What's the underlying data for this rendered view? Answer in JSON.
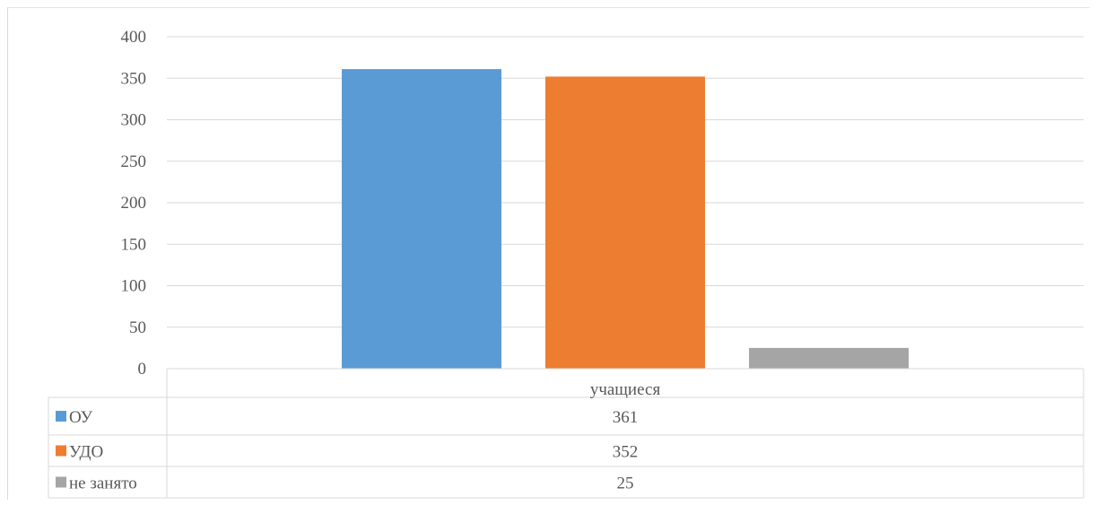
{
  "chart_data": {
    "type": "bar",
    "categories": [
      "учащиеся"
    ],
    "series": [
      {
        "name": "ОУ",
        "values": [
          361
        ],
        "color": "#5b9bd5"
      },
      {
        "name": "УДО",
        "values": [
          352
        ],
        "color": "#ed7d31"
      },
      {
        "name": "не занято",
        "values": [
          25
        ],
        "color": "#a5a5a5"
      }
    ],
    "yticks": [
      "0",
      "50",
      "100",
      "150",
      "200",
      "250",
      "300",
      "350",
      "400"
    ],
    "ylim": [
      0,
      400
    ],
    "grid": true,
    "legend": "data-table",
    "gridline_color": "#d9d9d9"
  }
}
